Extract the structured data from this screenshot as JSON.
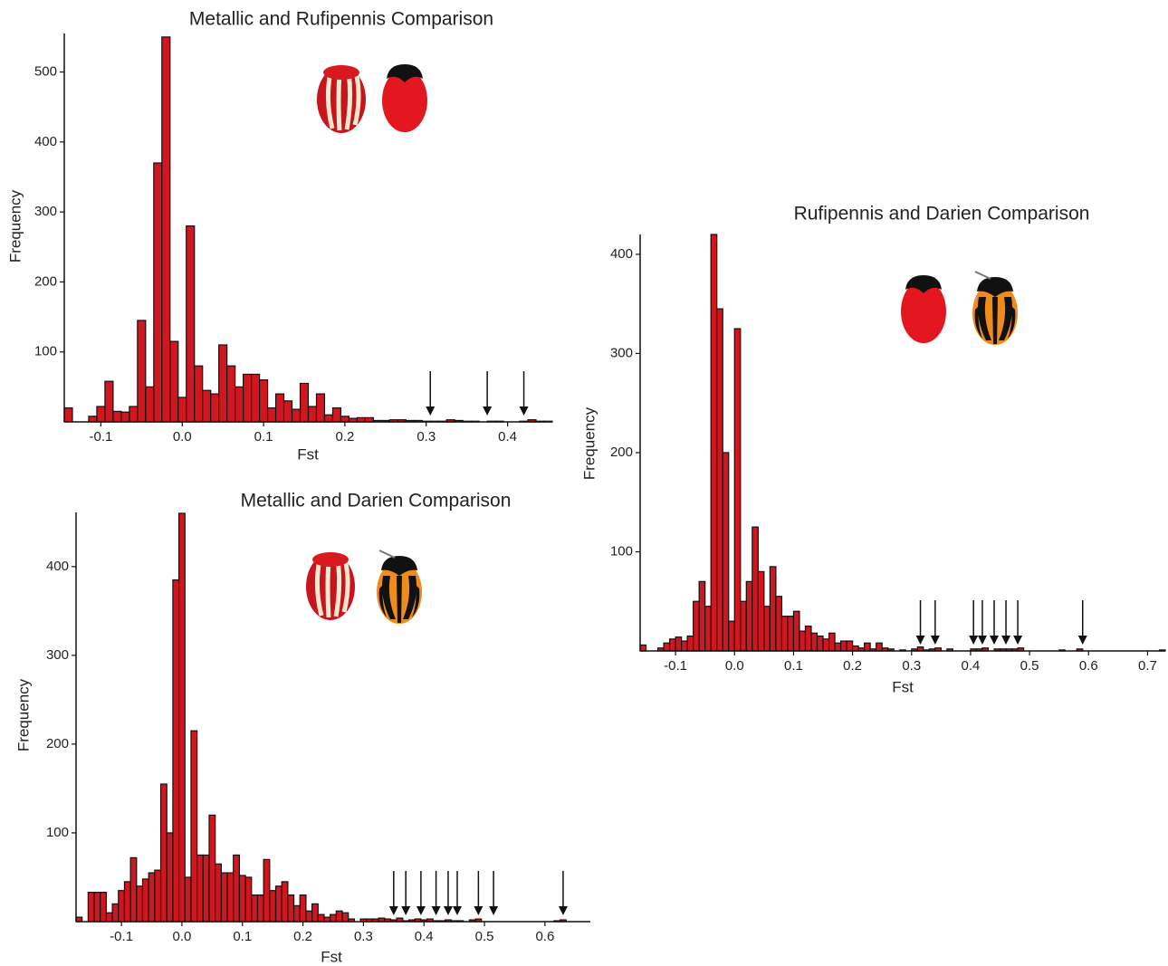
{
  "chart_data": [
    {
      "type": "histogram",
      "title": "Metallic and Rufipennis Comparison",
      "x_label": "Fst",
      "y_label": "Frequency",
      "color": "#d0161f",
      "bins": [
        -0.145,
        -0.135,
        -0.125,
        -0.115,
        -0.105,
        -0.095,
        -0.085,
        -0.075,
        -0.065,
        -0.055,
        -0.045,
        -0.035,
        -0.025,
        -0.015,
        -0.005,
        0.005,
        0.015,
        0.025,
        0.035,
        0.045,
        0.055,
        0.065,
        0.075,
        0.085,
        0.095,
        0.105,
        0.115,
        0.125,
        0.135,
        0.145,
        0.155,
        0.165,
        0.175,
        0.185,
        0.195,
        0.205,
        0.215,
        0.225,
        0.235,
        0.245,
        0.255,
        0.265,
        0.275,
        0.285,
        0.295,
        0.305,
        0.315,
        0.325,
        0.335,
        0.345,
        0.355,
        0.365,
        0.375,
        0.385,
        0.395,
        0.405,
        0.415,
        0.425,
        0.435,
        0.445,
        0.455
      ],
      "values": [
        20,
        0,
        0,
        8,
        22,
        58,
        15,
        14,
        22,
        145,
        50,
        370,
        550,
        115,
        35,
        280,
        80,
        45,
        40,
        110,
        80,
        50,
        68,
        68,
        60,
        20,
        40,
        30,
        18,
        55,
        22,
        40,
        10,
        20,
        8,
        5,
        6,
        6,
        2,
        2,
        3,
        3,
        2,
        2,
        1,
        1,
        1,
        3,
        2,
        1,
        1,
        0,
        1,
        1,
        0,
        0,
        1,
        3,
        1,
        1
      ],
      "arrows": [
        0.305,
        0.375,
        0.42
      ],
      "xlim": [
        -0.145,
        0.455
      ],
      "ylim": [
        0,
        555
      ],
      "xticks": [
        -0.1,
        {
          "value": 0,
          "label": "0.0"
        },
        0.1,
        0.2,
        0.3,
        0.4
      ],
      "yticks": [
        100,
        200,
        300,
        400,
        500
      ]
    },
    {
      "type": "histogram",
      "title": "Rufipennis and Darien Comparison",
      "x_label": "Fst",
      "y_label": "Frequency",
      "color": "#d0161f",
      "bins": [
        -0.16,
        -0.15,
        -0.14,
        -0.13,
        -0.12,
        -0.11,
        -0.1,
        -0.09,
        -0.08,
        -0.07,
        -0.06,
        -0.05,
        -0.04,
        -0.03,
        -0.02,
        -0.01,
        0,
        0.01,
        0.02,
        0.03,
        0.04,
        0.05,
        0.06,
        0.07,
        0.08,
        0.09,
        0.1,
        0.11,
        0.12,
        0.13,
        0.14,
        0.15,
        0.16,
        0.17,
        0.18,
        0.19,
        0.2,
        0.21,
        0.22,
        0.23,
        0.24,
        0.25,
        0.26,
        0.27,
        0.28,
        0.29,
        0.3,
        0.31,
        0.32,
        0.33,
        0.34,
        0.35,
        0.36,
        0.37,
        0.38,
        0.39,
        0.4,
        0.41,
        0.42,
        0.43,
        0.44,
        0.45,
        0.46,
        0.47,
        0.48,
        0.49,
        0.5,
        0.51,
        0.52,
        0.53,
        0.54,
        0.55,
        0.56,
        0.57,
        0.58,
        0.59,
        0.6,
        0.61,
        0.62,
        0.63,
        0.64,
        0.65,
        0.66,
        0.67,
        0.68,
        0.69,
        0.7,
        0.71,
        0.72,
        0.73
      ],
      "values": [
        6,
        0,
        0,
        3,
        8,
        12,
        14,
        10,
        15,
        50,
        70,
        45,
        420,
        345,
        200,
        30,
        325,
        50,
        70,
        125,
        80,
        45,
        85,
        55,
        35,
        35,
        40,
        20,
        25,
        18,
        15,
        12,
        18,
        8,
        10,
        10,
        5,
        3,
        8,
        2,
        8,
        3,
        2,
        0,
        1,
        0,
        2,
        4,
        1,
        2,
        3,
        0,
        2,
        0,
        0,
        0,
        2,
        2,
        3,
        0,
        2,
        2,
        2,
        2,
        3,
        0,
        0,
        0,
        0,
        0,
        0,
        1,
        0,
        0,
        2,
        0,
        0,
        0,
        0,
        0,
        0,
        0,
        0,
        0,
        0,
        0,
        0,
        0,
        1
      ],
      "arrows": [
        0.315,
        0.34,
        0.405,
        0.42,
        0.44,
        0.46,
        0.48,
        0.59
      ],
      "xlim": [
        -0.16,
        0.73
      ],
      "ylim": [
        0,
        420
      ],
      "xticks": [
        -0.1,
        {
          "value": 0,
          "label": "0.0"
        },
        0.1,
        0.2,
        0.3,
        0.4,
        0.5,
        0.6,
        0.7
      ],
      "yticks": [
        100,
        200,
        300,
        400
      ]
    },
    {
      "type": "histogram",
      "title": "Metallic and Darien Comparison",
      "x_label": "Fst",
      "y_label": "Frequency",
      "color": "#d0161f",
      "bins": [
        -0.175,
        -0.165,
        -0.155,
        -0.145,
        -0.135,
        -0.125,
        -0.115,
        -0.105,
        -0.095,
        -0.085,
        -0.075,
        -0.065,
        -0.055,
        -0.045,
        -0.035,
        -0.025,
        -0.015,
        -0.005,
        0.005,
        0.015,
        0.025,
        0.035,
        0.045,
        0.055,
        0.065,
        0.075,
        0.085,
        0.095,
        0.105,
        0.115,
        0.125,
        0.135,
        0.145,
        0.155,
        0.165,
        0.175,
        0.185,
        0.195,
        0.205,
        0.215,
        0.225,
        0.235,
        0.245,
        0.255,
        0.265,
        0.275,
        0.285,
        0.295,
        0.305,
        0.315,
        0.325,
        0.335,
        0.345,
        0.355,
        0.365,
        0.375,
        0.385,
        0.395,
        0.405,
        0.415,
        0.425,
        0.435,
        0.445,
        0.455,
        0.465,
        0.475,
        0.485,
        0.495,
        0.505,
        0.515,
        0.525,
        0.535,
        0.545,
        0.555,
        0.565,
        0.575,
        0.585,
        0.595,
        0.605,
        0.615,
        0.625,
        0.635,
        0.645,
        0.655,
        0.665,
        0.675
      ],
      "values": [
        5,
        0,
        33,
        33,
        33,
        10,
        20,
        35,
        45,
        72,
        40,
        48,
        55,
        58,
        155,
        100,
        385,
        460,
        50,
        215,
        75,
        75,
        120,
        65,
        55,
        55,
        75,
        52,
        50,
        30,
        30,
        70,
        35,
        40,
        45,
        30,
        18,
        30,
        12,
        20,
        8,
        5,
        8,
        12,
        10,
        3,
        0,
        3,
        3,
        3,
        4,
        3,
        2,
        4,
        1,
        2,
        3,
        2,
        3,
        1,
        1,
        2,
        1,
        1,
        0,
        2,
        3,
        0,
        0,
        0,
        0,
        0,
        0,
        0,
        0,
        0,
        0,
        0,
        0,
        1,
        2,
        0,
        0,
        0,
        0
      ],
      "arrows": [
        0.35,
        0.37,
        0.395,
        0.42,
        0.44,
        0.455,
        0.49,
        0.515,
        0.63
      ],
      "xlim": [
        -0.175,
        0.675
      ],
      "ylim": [
        0,
        461
      ],
      "xticks": [
        -0.1,
        {
          "value": 0,
          "label": "0.0"
        },
        0.1,
        0.2,
        0.3,
        0.4,
        0.5,
        0.6
      ],
      "yticks": [
        100,
        200,
        300,
        400
      ]
    }
  ]
}
